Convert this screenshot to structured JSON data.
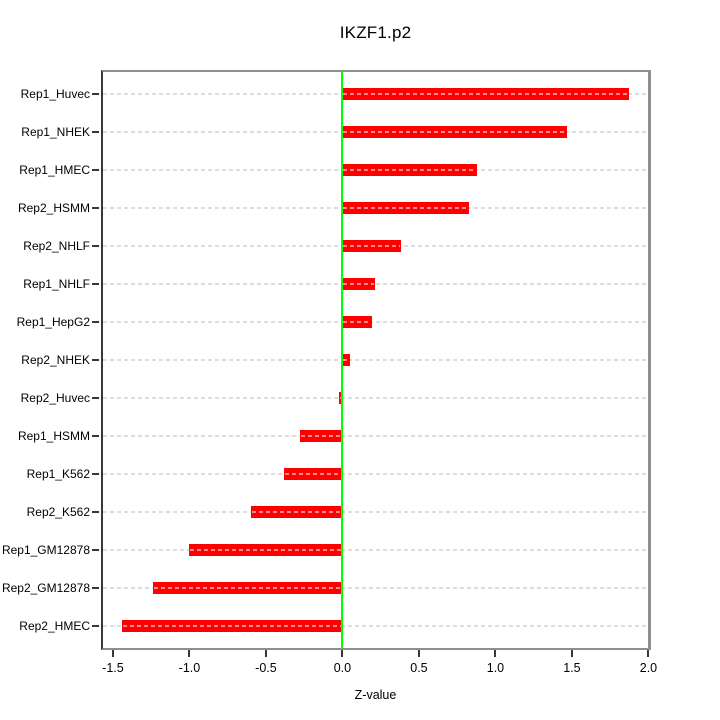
{
  "title": "IKZF1.p2",
  "chart_data": {
    "type": "bar",
    "orientation": "horizontal",
    "title": "IKZF1.p2",
    "xlabel": "Z-value",
    "ylabel": "",
    "categories": [
      "Rep1_Huvec",
      "Rep1_NHEK",
      "Rep1_HMEC",
      "Rep2_HSMM",
      "Rep2_NHLF",
      "Rep1_NHLF",
      "Rep1_HepG2",
      "Rep2_NHEK",
      "Rep2_Huvec",
      "Rep1_HSMM",
      "Rep1_K562",
      "Rep2_K562",
      "Rep1_GM12878",
      "Rep2_GM12878",
      "Rep2_HMEC"
    ],
    "values": [
      1.87,
      1.47,
      0.88,
      0.83,
      0.38,
      0.21,
      0.19,
      0.05,
      -0.02,
      -0.28,
      -0.38,
      -0.6,
      -1.0,
      -1.24,
      -1.44
    ],
    "xlim": [
      -1.565,
      1.997
    ],
    "xticks": [
      -1.5,
      -1.0,
      -0.5,
      0.0,
      0.5,
      1.0,
      1.5,
      2.0
    ],
    "xtick_labels": [
      "-1.5",
      "-1.0",
      "-0.5",
      "0.0",
      "0.5",
      "1.0",
      "1.5",
      "2.0"
    ],
    "zero_reference_line": 0,
    "grid": "dashed-horizontal",
    "legend": "none",
    "colors": {
      "bar": "#ff0000",
      "bar_inner_dash": "rgba(255,255,255,0.55)",
      "zero_line": "#00ff00",
      "gridline": "#dcdcdc",
      "panel_border": "#8f8f8f",
      "axis": "#383838",
      "text": "#000000",
      "background": "#ffffff"
    }
  }
}
